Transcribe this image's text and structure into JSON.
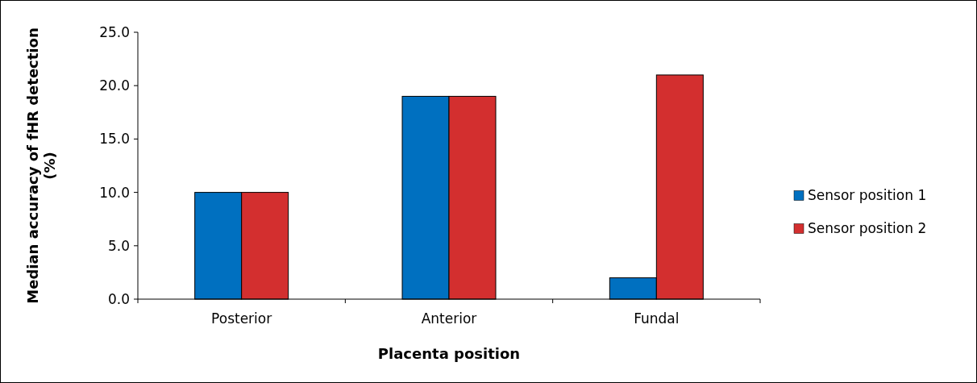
{
  "chart_data": {
    "type": "bar",
    "xlabel": "Placenta position",
    "ylabel": "Median accuracy of fHR detection (%)",
    "categories": [
      "Posterior",
      "Anterior",
      "Fundal"
    ],
    "series": [
      {
        "name": "Sensor position 1",
        "color": "#0070c0",
        "values": [
          10,
          19,
          2
        ]
      },
      {
        "name": "Sensor position 2",
        "color": "#d32f2f",
        "values": [
          10,
          19,
          21
        ]
      }
    ],
    "ylim": [
      0,
      25
    ],
    "yticks": [
      {
        "value": 0,
        "label": "0.0"
      },
      {
        "value": 5,
        "label": "5.0"
      },
      {
        "value": 10,
        "label": "10.0"
      },
      {
        "value": 15,
        "label": "15.0"
      },
      {
        "value": 20,
        "label": "20.0"
      },
      {
        "value": 25,
        "label": "25.0"
      }
    ],
    "grid": false,
    "legend": "right"
  }
}
